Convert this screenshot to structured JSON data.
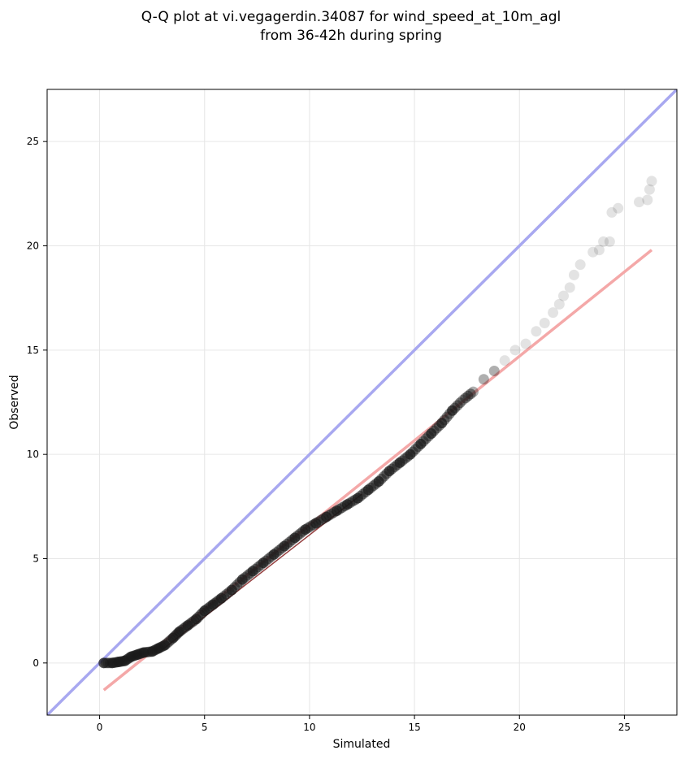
{
  "chart_data": {
    "type": "scatter",
    "title_line1": "Q-Q plot at vi.vegagerdin.34087 for wind_speed_at_10m_agl",
    "title_line2": "from 36-42h during spring",
    "xlabel": "Simulated",
    "ylabel": "Observed",
    "xlim": [
      -2.5,
      27.5
    ],
    "ylim": [
      -2.5,
      27.5
    ],
    "xticks": [
      0,
      5,
      10,
      15,
      20,
      25
    ],
    "yticks": [
      0,
      5,
      10,
      15,
      20,
      25
    ],
    "grid": true,
    "identity_line": {
      "x": [
        -2.5,
        27.5
      ],
      "y": [
        -2.5,
        27.5
      ],
      "color": "#a8a8f0"
    },
    "fit_line": {
      "x": [
        0.2,
        26.3
      ],
      "y": [
        -1.3,
        19.8
      ],
      "color": "#f4a8a8"
    },
    "series": [
      {
        "points": [
          [
            0.2,
            0.0
          ],
          [
            0.6,
            0.0
          ],
          [
            0.9,
            0.05
          ],
          [
            1.2,
            0.1
          ],
          [
            1.5,
            0.3
          ],
          [
            1.8,
            0.4
          ],
          [
            2.1,
            0.5
          ],
          [
            2.5,
            0.55
          ],
          [
            2.8,
            0.7
          ],
          [
            3.1,
            0.85
          ],
          [
            3.5,
            1.2
          ],
          [
            3.8,
            1.5
          ],
          [
            4.2,
            1.8
          ],
          [
            4.6,
            2.1
          ],
          [
            5.0,
            2.5
          ],
          [
            5.4,
            2.8
          ],
          [
            5.8,
            3.1
          ],
          [
            6.3,
            3.5
          ],
          [
            6.8,
            4.0
          ],
          [
            7.3,
            4.4
          ],
          [
            7.8,
            4.8
          ],
          [
            8.3,
            5.2
          ],
          [
            8.8,
            5.6
          ],
          [
            9.3,
            6.0
          ],
          [
            9.8,
            6.4
          ],
          [
            10.3,
            6.7
          ],
          [
            10.8,
            7.0
          ],
          [
            11.3,
            7.3
          ],
          [
            11.8,
            7.6
          ],
          [
            12.3,
            7.9
          ],
          [
            12.8,
            8.3
          ],
          [
            13.3,
            8.7
          ],
          [
            13.8,
            9.2
          ],
          [
            14.3,
            9.6
          ],
          [
            14.8,
            10.0
          ],
          [
            15.3,
            10.5
          ],
          [
            15.8,
            11.0
          ],
          [
            16.3,
            11.5
          ],
          [
            16.8,
            12.1
          ],
          [
            17.3,
            12.6
          ],
          [
            17.8,
            13.0
          ],
          [
            18.3,
            13.6
          ],
          [
            18.8,
            14.0
          ],
          [
            19.3,
            14.5
          ],
          [
            19.8,
            15.0
          ],
          [
            20.3,
            15.3
          ],
          [
            20.8,
            15.9
          ],
          [
            21.2,
            16.3
          ],
          [
            21.6,
            16.8
          ],
          [
            21.9,
            17.2
          ],
          [
            22.1,
            17.6
          ],
          [
            22.4,
            18.0
          ],
          [
            22.6,
            18.6
          ],
          [
            22.9,
            19.1
          ],
          [
            23.5,
            19.7
          ],
          [
            23.8,
            19.8
          ],
          [
            24.0,
            20.2
          ],
          [
            24.3,
            20.2
          ],
          [
            24.4,
            21.6
          ],
          [
            24.7,
            21.8
          ],
          [
            25.7,
            22.1
          ],
          [
            26.1,
            22.2
          ],
          [
            26.2,
            22.7
          ],
          [
            26.3,
            23.1
          ]
        ]
      }
    ]
  }
}
